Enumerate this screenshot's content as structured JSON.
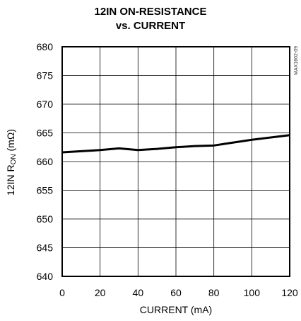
{
  "chart_data": {
    "type": "line",
    "title_line1": "12IN ON-RESISTANCE",
    "title_line2": "vs. CURRENT",
    "xlabel": "CURRENT (mA)",
    "ylabel": {
      "prefix": "12IN R",
      "sub": "ON",
      "suffix": " (mΩ)"
    },
    "xlim": [
      0,
      120
    ],
    "ylim": [
      640,
      680
    ],
    "xticks": [
      0,
      20,
      40,
      60,
      80,
      100,
      120
    ],
    "yticks": [
      640,
      645,
      650,
      655,
      660,
      665,
      670,
      675,
      680
    ],
    "grid": true,
    "part_number": "MAX1602-09",
    "series": [
      {
        "x": [
          0,
          10,
          20,
          30,
          40,
          50,
          60,
          70,
          80,
          90,
          100,
          110,
          120
        ],
        "y": [
          661.6,
          661.8,
          662.0,
          662.3,
          662.0,
          662.2,
          662.5,
          662.7,
          662.8,
          663.3,
          663.8,
          664.2,
          664.6
        ]
      }
    ]
  }
}
